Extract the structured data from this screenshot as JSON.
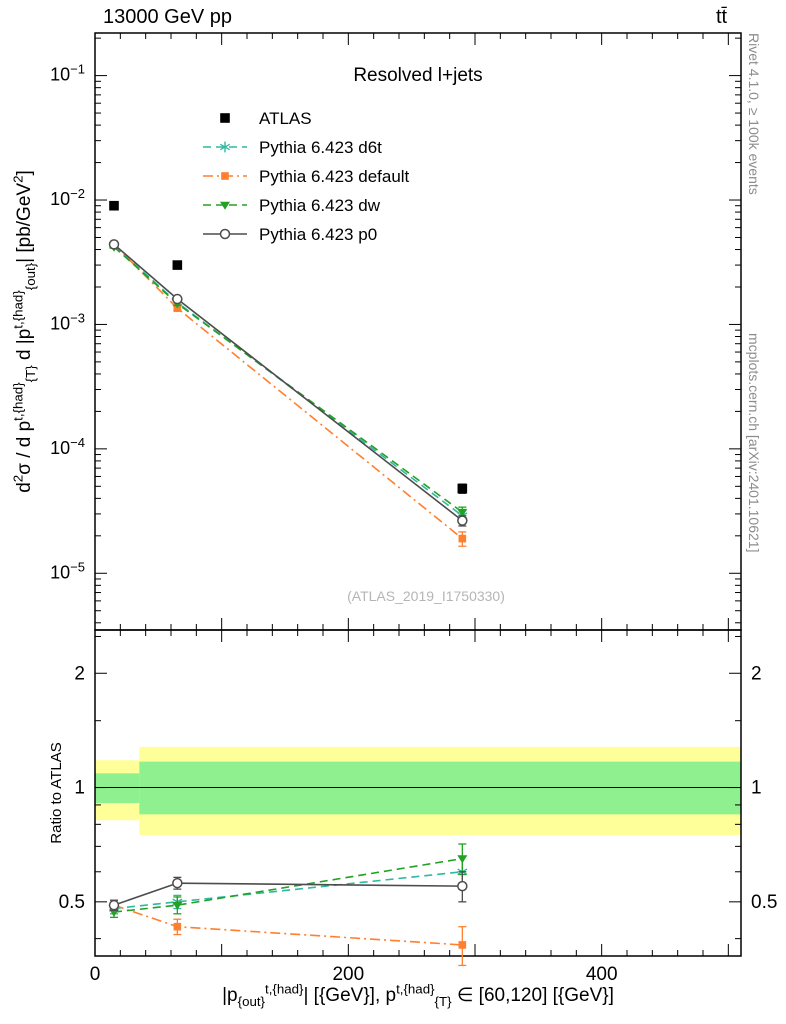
{
  "header": {
    "left": "13000 GeV pp",
    "right": "tt̄"
  },
  "side_texts": {
    "top": "Rivet 4.1.0, ≥ 100k events",
    "bottom": "mcplots.cern.ch [arXiv:2401.10621]"
  },
  "watermark": "(ATLAS_2019_I1750330)",
  "chart_data": {
    "type": "line",
    "title": "Resolved l+jets",
    "ratio_ylabel": "Ratio to ATLAS",
    "ylabel_rich": [
      {
        "t": "d"
      },
      {
        "t": "2",
        "s": "sup"
      },
      {
        "t": "σ /  d p"
      },
      {
        "t": "t,{had}",
        "s": "sup"
      },
      {
        "t": "{T}",
        "s": "sub"
      },
      {
        "t": " d |p"
      },
      {
        "t": "t,{had}",
        "s": "sup"
      },
      {
        "t": "{out}",
        "s": "sub"
      },
      {
        "t": "| [pb/GeV"
      },
      {
        "t": "2",
        "s": "sup"
      },
      {
        "t": "]"
      }
    ],
    "xlabel_rich": [
      {
        "t": "|p"
      },
      {
        "t": "{out}",
        "s": "sub"
      },
      {
        "t": "t,{had}",
        "s": "sup"
      },
      {
        "t": "| [{GeV}], p"
      },
      {
        "t": "t,{had}",
        "s": "sup"
      },
      {
        "t": "{T}",
        "s": "sub"
      },
      {
        "t": " ∈ [60,120] [{GeV}]"
      }
    ],
    "x_range": [
      0,
      510
    ],
    "x_ticks": {
      "labeled": [
        0,
        200,
        400
      ],
      "major_step": 100,
      "minor_step": 20
    },
    "main_panel": {
      "yscale": "log",
      "ylim": [
        3.5e-06,
        0.22
      ],
      "y_ticks_exponents": [
        -5,
        -4,
        -3,
        -2,
        -1
      ]
    },
    "ratio_panel": {
      "yscale": "log",
      "ylim": [
        0.36,
        2.6
      ],
      "y_ticks_labeled": [
        0.5,
        1,
        2
      ],
      "y_ticks_minor": [
        0.4,
        0.6,
        0.7,
        0.8,
        0.9,
        1.5,
        2.5
      ],
      "reference_line": 1,
      "band_colors": {
        "yellow": "#ffff99",
        "green": "#8ef08e"
      },
      "bands": [
        {
          "x": [
            0,
            35
          ],
          "yellow": [
            0.82,
            1.18
          ],
          "green": [
            0.91,
            1.09
          ]
        },
        {
          "x": [
            35,
            510
          ],
          "yellow": [
            0.75,
            1.28
          ],
          "green": [
            0.85,
            1.17
          ]
        }
      ]
    },
    "series": [
      {
        "name": "ATLAS",
        "color": "#000000",
        "marker": "square-filled",
        "line": "none",
        "x": [
          15,
          65,
          290
        ],
        "y": [
          0.009,
          0.003,
          4.8e-05
        ],
        "yerr": [
          0.0005,
          0.00018,
          4e-06
        ]
      },
      {
        "name": "Pythia 6.423 d6t",
        "color": "#2fb8a2",
        "marker": "star",
        "line": "dashed",
        "x": [
          15,
          65,
          290
        ],
        "y": [
          0.0043,
          0.0015,
          2.9e-05
        ],
        "yerr": [
          0.0001,
          5e-05,
          3e-06
        ],
        "ratio": [
          0.48,
          0.5,
          0.6
        ],
        "ratio_err": [
          0.015,
          0.02,
          0.06
        ]
      },
      {
        "name": "Pythia 6.423 default",
        "color": "#ff7f2e",
        "marker": "square-filled",
        "line": "dashdot",
        "x": [
          15,
          65,
          290
        ],
        "y": [
          0.0044,
          0.00135,
          1.9e-05
        ],
        "yerr": [
          0.0001,
          5e-05,
          2.5e-06
        ],
        "ratio": [
          0.49,
          0.43,
          0.385
        ],
        "ratio_err": [
          0.015,
          0.02,
          0.045
        ]
      },
      {
        "name": "Pythia 6.423 dw",
        "color": "#23a123",
        "marker": "triangle-down",
        "line": "dashed",
        "x": [
          15,
          65,
          290
        ],
        "y": [
          0.0042,
          0.00147,
          3.1e-05
        ],
        "yerr": [
          0.0001,
          5e-05,
          3e-06
        ],
        "ratio": [
          0.47,
          0.49,
          0.65
        ],
        "ratio_err": [
          0.015,
          0.025,
          0.06
        ]
      },
      {
        "name": "Pythia 6.423 p0",
        "color": "#4d4d4d",
        "marker": "circle-open",
        "line": "solid",
        "x": [
          15,
          65,
          290
        ],
        "y": [
          0.0044,
          0.0016,
          2.65e-05
        ],
        "yerr": [
          0.0001,
          5e-05,
          2.5e-06
        ],
        "ratio": [
          0.49,
          0.56,
          0.55
        ],
        "ratio_err": [
          0.015,
          0.02,
          0.05
        ]
      }
    ]
  }
}
